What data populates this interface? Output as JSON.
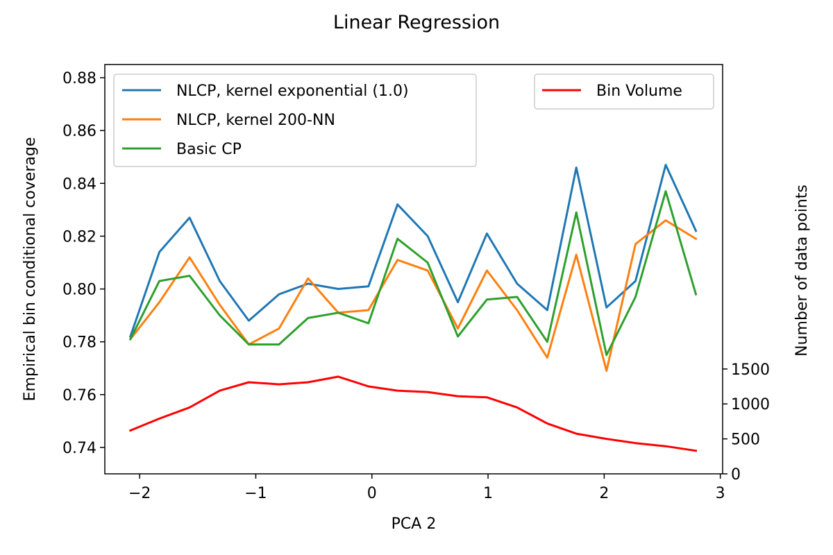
{
  "chart_data": {
    "type": "line",
    "title": "Linear Regression",
    "xlabel": "PCA 2",
    "ylabel": "Empirical bin conditional coverage",
    "y2label": "Number of data points",
    "xlim": [
      -2.3,
      3.02
    ],
    "ylim": [
      0.73,
      0.885
    ],
    "y2lim": [
      0,
      5855
    ],
    "xticks": [
      -2,
      -1,
      0,
      1,
      2,
      3
    ],
    "xtick_labels": [
      "−2",
      "−1",
      "0",
      "1",
      "2",
      "3"
    ],
    "yticks": [
      0.74,
      0.76,
      0.78,
      0.8,
      0.82,
      0.84,
      0.86,
      0.88
    ],
    "ytick_labels": [
      "0.74",
      "0.76",
      "0.78",
      "0.80",
      "0.82",
      "0.84",
      "0.86",
      "0.88"
    ],
    "y2ticks": [
      0,
      500,
      1000,
      1500
    ],
    "y2tick_labels": [
      "0",
      "500",
      "1000",
      "1500"
    ],
    "x": [
      -2.08,
      -1.83,
      -1.57,
      -1.31,
      -1.06,
      -0.8,
      -0.55,
      -0.29,
      -0.03,
      0.22,
      0.48,
      0.74,
      0.99,
      1.25,
      1.51,
      1.76,
      2.02,
      2.27,
      2.53,
      2.79
    ],
    "series": [
      {
        "name": "NLCP, kernel exponential (1.0)",
        "color": "#1f77b4",
        "axis": "left",
        "values": [
          0.782,
          0.814,
          0.827,
          0.803,
          0.788,
          0.798,
          0.802,
          0.8,
          0.801,
          0.832,
          0.82,
          0.795,
          0.821,
          0.802,
          0.792,
          0.846,
          0.793,
          0.803,
          0.847,
          0.822
        ]
      },
      {
        "name": "NLCP, kernel 200-NN",
        "color": "#ff7f0e",
        "axis": "left",
        "values": [
          0.781,
          0.795,
          0.812,
          0.794,
          0.779,
          0.785,
          0.804,
          0.791,
          0.792,
          0.811,
          0.807,
          0.785,
          0.807,
          0.792,
          0.774,
          0.813,
          0.769,
          0.817,
          0.826,
          0.819
        ]
      },
      {
        "name": "Basic CP",
        "color": "#2ca02c",
        "axis": "left",
        "values": [
          0.781,
          0.803,
          0.805,
          0.79,
          0.779,
          0.779,
          0.789,
          0.791,
          0.787,
          0.819,
          0.81,
          0.782,
          0.796,
          0.797,
          0.78,
          0.829,
          0.775,
          0.797,
          0.837,
          0.798
        ]
      },
      {
        "name": "Bin Volume",
        "color": "#ff0000",
        "axis": "right",
        "values": [
          620,
          790,
          950,
          1190,
          1310,
          1280,
          1310,
          1390,
          1250,
          1190,
          1170,
          1110,
          1095,
          950,
          720,
          575,
          500,
          440,
          395,
          330
        ]
      }
    ],
    "legend_left": {
      "placement": "upper-left",
      "entries": [
        "NLCP, kernel exponential (1.0)",
        "NLCP, kernel 200-NN",
        "Basic CP"
      ]
    },
    "legend_right": {
      "placement": "upper-right",
      "entries": [
        "Bin Volume"
      ]
    },
    "grid": false
  }
}
